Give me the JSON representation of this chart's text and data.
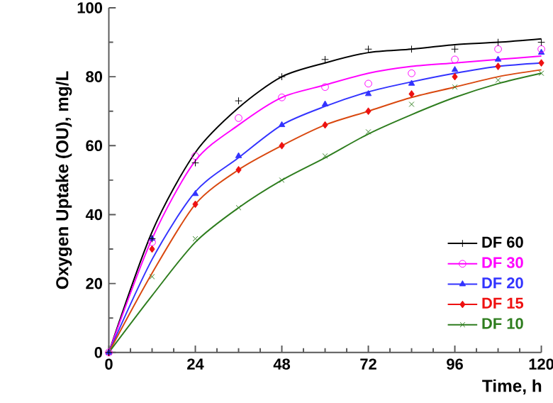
{
  "chart_data": {
    "type": "scatter",
    "xlabel": "Time, h",
    "ylabel": "Oxygen Uptake (OU), mg/L",
    "xlim": [
      0,
      120
    ],
    "ylim": [
      0,
      100
    ],
    "xticks": [
      0,
      24,
      48,
      72,
      96,
      120
    ],
    "yticks": [
      0,
      20,
      40,
      60,
      80,
      100
    ],
    "legend": "bottom right",
    "grid": false,
    "x": [
      0,
      12,
      24,
      36,
      48,
      60,
      72,
      84,
      96,
      108,
      120
    ],
    "series": [
      {
        "name": "DF 60",
        "marker": "plus",
        "color": "#000000",
        "values": [
          0,
          33,
          55,
          73,
          80,
          85,
          88,
          88,
          88,
          90,
          90
        ]
      },
      {
        "name": "DF 30",
        "marker": "circle",
        "color": "#ff00ff",
        "values": [
          0,
          32,
          57,
          68,
          74,
          77,
          78,
          81,
          85,
          88,
          88
        ]
      },
      {
        "name": "DF 20",
        "marker": "triangle",
        "color": "#3333ff",
        "values": [
          0,
          33,
          46,
          57,
          66,
          72,
          75,
          78,
          82,
          85,
          87
        ]
      },
      {
        "name": "DF 15",
        "marker": "diamond",
        "color": "#ee1111",
        "values": [
          0,
          30,
          43,
          53,
          60,
          66,
          70,
          75,
          80,
          83,
          84
        ]
      },
      {
        "name": "DF 10",
        "marker": "cross",
        "color": "#2e7d1e",
        "values": [
          0,
          22,
          33,
          42,
          50,
          57,
          64,
          72,
          77,
          79,
          81
        ]
      },
      {
        "type": "line",
        "marker": "none",
        "color": "#000000",
        "values": [
          0,
          35,
          58,
          71,
          80,
          84,
          87,
          88,
          89.3,
          90,
          91
        ]
      },
      {
        "type": "line",
        "marker": "none",
        "color": "#ff00ff",
        "values": [
          0,
          33,
          55.6,
          66,
          74,
          77.6,
          81,
          83,
          84,
          85,
          86
        ]
      },
      {
        "type": "line",
        "marker": "none",
        "color": "#3333ff",
        "values": [
          0,
          27,
          46.6,
          56.5,
          66,
          71.4,
          75.6,
          78.5,
          81,
          83,
          84
        ]
      },
      {
        "type": "line",
        "marker": "none",
        "color": "#d9480f",
        "values": [
          0,
          23,
          43,
          53,
          60,
          66,
          70,
          74,
          77,
          80,
          82
        ]
      },
      {
        "type": "line",
        "marker": "none",
        "color": "#2e7d1e",
        "values": [
          0,
          16.5,
          32,
          42,
          50,
          56.5,
          63.4,
          69,
          74,
          78,
          81
        ]
      }
    ]
  }
}
